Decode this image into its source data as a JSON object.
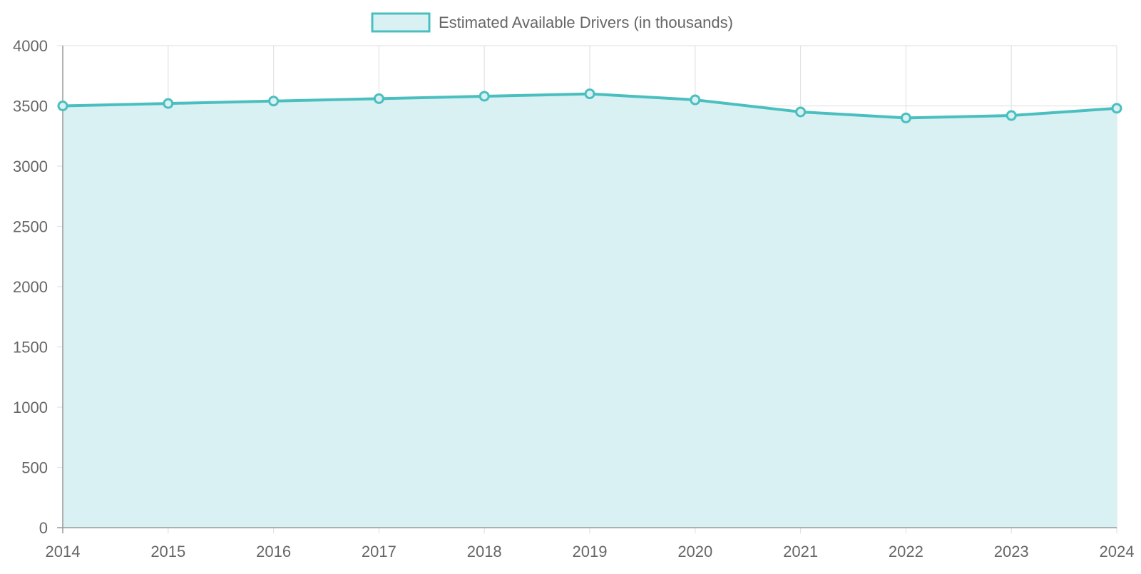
{
  "chart_data": {
    "type": "area",
    "title": "",
    "xlabel": "",
    "ylabel": "",
    "categories": [
      "2014",
      "2015",
      "2016",
      "2017",
      "2018",
      "2019",
      "2020",
      "2021",
      "2022",
      "2023",
      "2024"
    ],
    "series": [
      {
        "name": "Estimated Available Drivers (in thousands)",
        "values": [
          3500,
          3520,
          3540,
          3560,
          3580,
          3600,
          3550,
          3450,
          3400,
          3420,
          3480
        ],
        "color": "#4bbfbf",
        "fill": "#d9f1f2"
      }
    ],
    "ylim": [
      0,
      4000
    ],
    "yticks": [
      "0",
      "500",
      "1000",
      "1500",
      "2000",
      "2500",
      "3000",
      "3500",
      "4000"
    ],
    "grid": true,
    "legend_position": "top-center",
    "colors": {
      "line": "#4bbfbf",
      "fill": "#d9f1f2",
      "grid": "#e3e3e3",
      "axis": "#999999",
      "text": "#666666"
    }
  }
}
